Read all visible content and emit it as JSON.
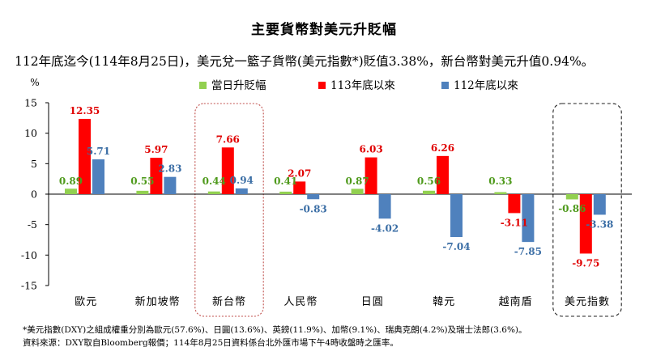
{
  "title": "主要貨幣對美元升貶幅",
  "subtitle": "112年底迄今(114年8月25日)，美元兌一籃子貨幣(美元指數*)貶值3.38%，新台幣對美元升值0.94%。",
  "footnote": "*美元指數(DXY)之組成權重分別為歐元(57.6%)、日圓(13.6%)、英鎊(11.9%)、加幣(9.1%)、瑞典克朗(4.2%)及瑞士法郎(3.6%)。",
  "source": "資料來源：DXY取自Bloomberg報價；114年8月25日資料係台北外匯市場下午4時收盤時之匯率。",
  "chart_data": {
    "type": "bar",
    "ylabel": "%",
    "ylim": [
      -15,
      15
    ],
    "yticks": [
      "15",
      "10",
      "5",
      "0",
      "-5",
      "-10",
      "-15"
    ],
    "categories": [
      "歐元",
      "新加坡幣",
      "新台幣",
      "人民幣",
      "日圓",
      "韓元",
      "越南盾",
      "美元指數"
    ],
    "legend_position": "top",
    "grid": false,
    "highlighted_categories": [
      "新台幣",
      "美元指數"
    ],
    "series": [
      {
        "name": "當日升貶幅",
        "color": "#92d050",
        "label_color": "#4f9a1c",
        "values": [
          0.89,
          0.55,
          0.44,
          0.41,
          0.87,
          0.56,
          0.33,
          -0.86
        ],
        "labels": [
          "0.89",
          "0.55",
          "0.44",
          "0.41",
          "0.87",
          "0.56",
          "0.33",
          "-0.86"
        ]
      },
      {
        "name": "113年底以來",
        "color": "#ff0000",
        "label_color": "#e00000",
        "values": [
          12.35,
          5.97,
          7.66,
          2.07,
          6.03,
          6.26,
          -3.11,
          -9.75
        ],
        "labels": [
          "12.35",
          "5.97",
          "7.66",
          "2.07",
          "6.03",
          "6.26",
          "-3.11",
          "-9.75"
        ]
      },
      {
        "name": "112年底以來",
        "color": "#4f81bd",
        "label_color": "#3b6ea5",
        "values": [
          5.71,
          2.83,
          0.94,
          -0.83,
          -4.02,
          -7.04,
          -7.85,
          -3.38
        ],
        "labels": [
          "5.71",
          "2.83",
          "0.94",
          "-0.83",
          "-4.02",
          "-7.04",
          "-7.85",
          "-3.38"
        ]
      }
    ]
  }
}
